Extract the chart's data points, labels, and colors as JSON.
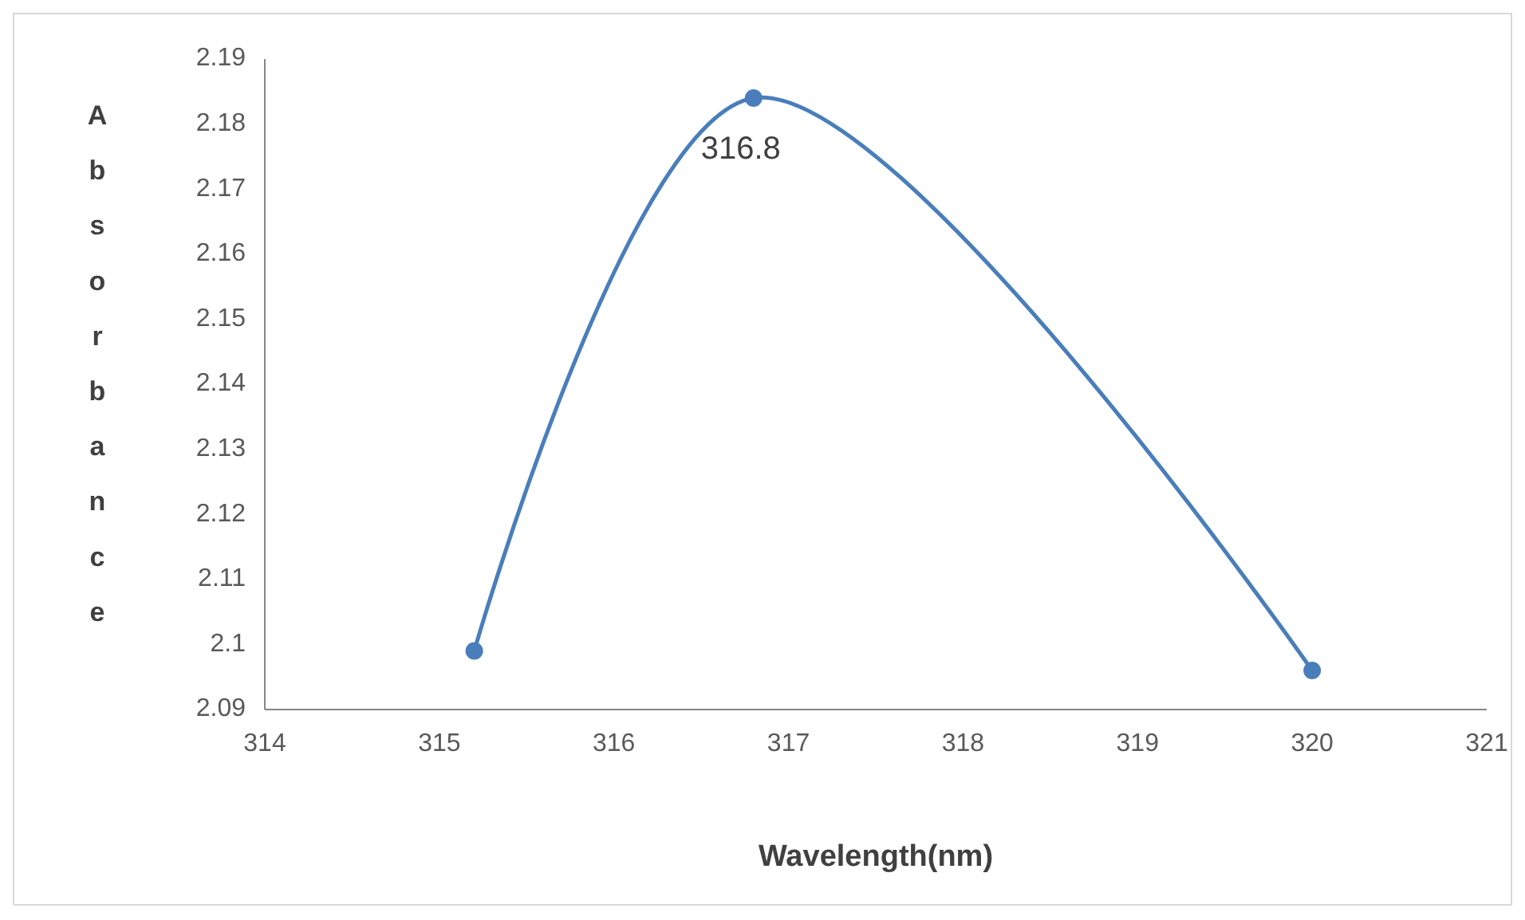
{
  "chart_data": {
    "type": "line",
    "xlabel": "Wavelength(nm)",
    "ylabel": "Absorbance",
    "x": [
      315.2,
      316.8,
      320
    ],
    "series": [
      {
        "color": "#4a7ebb",
        "values": [
          2.099,
          2.184,
          2.096
        ]
      }
    ],
    "xlim": [
      314,
      321
    ],
    "xticks": [
      314,
      315,
      316,
      317,
      318,
      319,
      320,
      321
    ],
    "ylim": [
      2.09,
      2.19
    ],
    "yticks": [
      2.09,
      2.1,
      2.11,
      2.12,
      2.13,
      2.14,
      2.15,
      2.16,
      2.17,
      2.18,
      2.19
    ],
    "annotations": [
      {
        "text": "316.8",
        "x": 316.8,
        "y": 2.184
      }
    ],
    "marker": "circle",
    "line_style": "solid"
  }
}
